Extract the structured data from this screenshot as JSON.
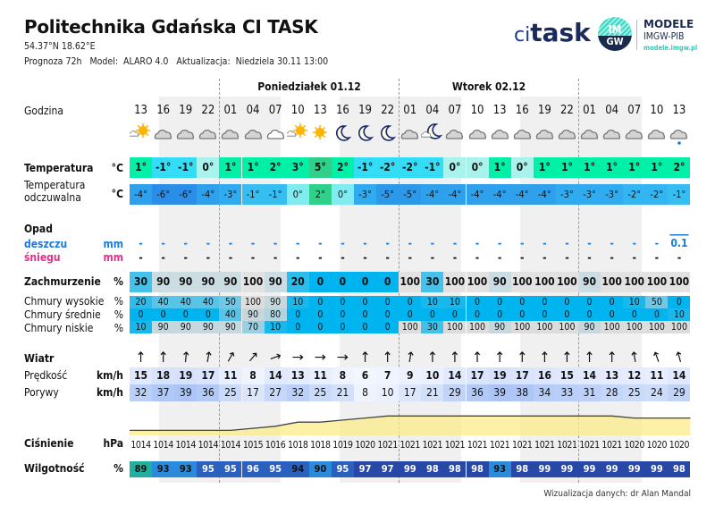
{
  "header": {
    "title": "Politechnika Gdańska CI TASK",
    "coords": "54.37°N  18.62°E",
    "info": "Prognoza 72h   Model:  ALARO 4.0   Aktualizacja:  Niedziela 30.11 13:00"
  },
  "logos": {
    "ci": "ci",
    "task": "task",
    "imgw_top": "IM",
    "imgw_bottom": "GW",
    "modele": "MODELE",
    "imgw_pib": "IMGW-PIB",
    "url": "modele.imgw.pl"
  },
  "days": [
    "Poniedziałek 01.12",
    "Wtorek 02.12"
  ],
  "labels": {
    "godzina": "Godzina",
    "temperatura": "Temperatura",
    "temp_unit": "°C",
    "odczuwalna": "Temperatura\nodczuwalna",
    "odcz_unit": "°C",
    "opad": "Opad",
    "deszczu": "deszczu",
    "sniegu": "śniegu",
    "mm": "mm",
    "zachmurzenie": "Zachmurzenie",
    "pct": "%",
    "wysokie": "Chmury wysokie",
    "srednie": "Chmury średnie",
    "niskie": "Chmury niskie",
    "wiatr": "Wiatr",
    "predkosc": "Prędkość",
    "porywy": "Porywy",
    "kmh": "km/h",
    "cisnienie": "Ciśnienie",
    "hpa": "hPa",
    "wilgotnosc": "Wilgotność"
  },
  "footer": "Wizualizacja danych: dr Alan Mandal",
  "colors": {
    "rain": "#1a7ae0",
    "snow": "#e0308a",
    "cloud_blue": "#00b4f0",
    "cloud_gray": "#dcdcdc",
    "pressure_fill": "#fbec8a"
  },
  "chart_data": {
    "type": "table",
    "hours": [
      "13",
      "16",
      "19",
      "22",
      "01",
      "04",
      "07",
      "10",
      "13",
      "16",
      "19",
      "22",
      "01",
      "04",
      "07",
      "10",
      "13",
      "16",
      "19",
      "22",
      "01",
      "04",
      "07",
      "10",
      "13"
    ],
    "icons": [
      "sun-cloud",
      "cloud",
      "cloud",
      "cloud",
      "cloud",
      "cloud",
      "cloud-light",
      "sun-cloud",
      "sun",
      "moon",
      "moon",
      "moon",
      "cloud",
      "moon-cloud",
      "cloud",
      "cloud",
      "cloud",
      "cloud",
      "cloud",
      "cloud",
      "cloud",
      "cloud",
      "cloud",
      "cloud",
      "cloud-rain"
    ],
    "temperature": [
      1,
      -1,
      -1,
      0,
      1,
      1,
      2,
      3,
      5,
      2,
      -1,
      -2,
      -2,
      -1,
      0,
      0,
      1,
      0,
      1,
      1,
      1,
      1,
      1,
      1,
      2
    ],
    "apparent_temperature": [
      -4,
      -6,
      -6,
      -4,
      -3,
      -1,
      -1,
      0,
      2,
      0,
      -3,
      -5,
      -5,
      -4,
      -4,
      -4,
      -4,
      -4,
      -4,
      -3,
      -3,
      -3,
      -2,
      -2,
      -1
    ],
    "rain_mm": [
      "-",
      "-",
      "-",
      "-",
      "-",
      "-",
      "-",
      "-",
      "-",
      "-",
      "-",
      "-",
      "-",
      "-",
      "-",
      "-",
      "-",
      "-",
      "-",
      "-",
      "-",
      "-",
      "-",
      "-",
      "0.1"
    ],
    "snow_mm": [
      "-",
      "-",
      "-",
      "-",
      "-",
      "-",
      "-",
      "-",
      "-",
      "-",
      "-",
      "-",
      "-",
      "-",
      "-",
      "-",
      "-",
      "-",
      "-",
      "-",
      "-",
      "-",
      "-",
      "-",
      "-"
    ],
    "cloud_total": [
      30,
      90,
      90,
      90,
      90,
      100,
      90,
      20,
      0,
      0,
      0,
      0,
      100,
      30,
      100,
      100,
      90,
      100,
      100,
      100,
      90,
      100,
      100,
      100,
      100
    ],
    "cloud_high": [
      20,
      40,
      40,
      40,
      50,
      100,
      90,
      10,
      0,
      0,
      0,
      0,
      0,
      10,
      10,
      0,
      0,
      0,
      0,
      0,
      0,
      0,
      10,
      50,
      0
    ],
    "cloud_mid": [
      0,
      0,
      0,
      0,
      40,
      90,
      80,
      0,
      0,
      0,
      0,
      0,
      0,
      0,
      0,
      0,
      0,
      0,
      0,
      0,
      0,
      0,
      0,
      0,
      10
    ],
    "cloud_low": [
      10,
      90,
      90,
      90,
      90,
      70,
      10,
      0,
      0,
      0,
      0,
      0,
      100,
      30,
      100,
      100,
      90,
      100,
      100,
      100,
      90,
      100,
      100,
      100,
      100
    ],
    "wind_arrow_deg": [
      0,
      0,
      5,
      10,
      30,
      40,
      70,
      90,
      90,
      90,
      0,
      0,
      10,
      0,
      0,
      0,
      0,
      0,
      0,
      0,
      0,
      0,
      -10,
      -20,
      -15
    ],
    "wind_speed": [
      15,
      18,
      19,
      17,
      11,
      8,
      14,
      13,
      11,
      8,
      6,
      7,
      9,
      10,
      14,
      17,
      19,
      17,
      16,
      15,
      14,
      13,
      12,
      11,
      14
    ],
    "wind_gusts": [
      32,
      37,
      39,
      36,
      25,
      17,
      27,
      32,
      25,
      21,
      8,
      10,
      17,
      21,
      29,
      36,
      39,
      38,
      34,
      33,
      31,
      28,
      25,
      24,
      29
    ],
    "pressure": [
      1014,
      1014,
      1014,
      1014,
      1014,
      1015,
      1016,
      1018,
      1018,
      1019,
      1020,
      1021,
      1021,
      1021,
      1021,
      1021,
      1021,
      1021,
      1021,
      1021,
      1021,
      1021,
      1020,
      1020,
      1020
    ],
    "humidity": [
      89,
      93,
      93,
      95,
      95,
      96,
      95,
      94,
      90,
      95,
      97,
      97,
      99,
      98,
      98,
      98,
      93,
      98,
      99,
      99,
      99,
      99,
      99,
      99,
      98
    ]
  }
}
